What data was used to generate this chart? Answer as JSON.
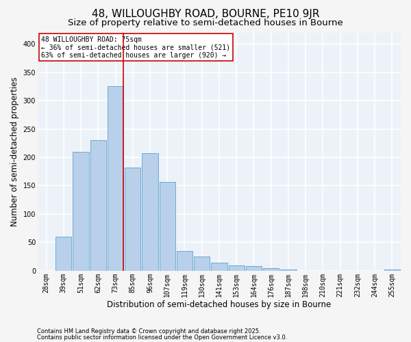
{
  "title": "48, WILLOUGHBY ROAD, BOURNE, PE10 9JR",
  "subtitle": "Size of property relative to semi-detached houses in Bourne",
  "xlabel": "Distribution of semi-detached houses by size in Bourne",
  "ylabel": "Number of semi-detached properties",
  "categories": [
    "28sqm",
    "39sqm",
    "51sqm",
    "62sqm",
    "73sqm",
    "85sqm",
    "96sqm",
    "107sqm",
    "119sqm",
    "130sqm",
    "141sqm",
    "153sqm",
    "164sqm",
    "176sqm",
    "187sqm",
    "198sqm",
    "210sqm",
    "221sqm",
    "232sqm",
    "244sqm",
    "255sqm"
  ],
  "values": [
    0,
    60,
    210,
    230,
    325,
    182,
    207,
    157,
    35,
    25,
    14,
    10,
    8,
    5,
    2,
    0,
    0,
    0,
    0,
    0,
    2
  ],
  "bar_color": "#b8d0ea",
  "bar_edge_color": "#6aaad4",
  "vline_x_index": 4,
  "vline_color": "#cc0000",
  "annotation_title": "48 WILLOUGHBY ROAD: 75sqm",
  "annotation_line1": "← 36% of semi-detached houses are smaller (521)",
  "annotation_line2": "63% of semi-detached houses are larger (920) →",
  "annotation_box_color": "#cc0000",
  "ylim": [
    0,
    420
  ],
  "yticks": [
    0,
    50,
    100,
    150,
    200,
    250,
    300,
    350,
    400
  ],
  "footnote1": "Contains HM Land Registry data © Crown copyright and database right 2025.",
  "footnote2": "Contains public sector information licensed under the Open Government Licence v3.0.",
  "bg_color": "#edf2f9",
  "grid_color": "#ffffff",
  "fig_bg_color": "#f5f5f5",
  "title_fontsize": 11,
  "subtitle_fontsize": 9.5,
  "tick_fontsize": 7,
  "ylabel_fontsize": 8.5,
  "xlabel_fontsize": 8.5,
  "footnote_fontsize": 6,
  "annotation_fontsize": 7
}
